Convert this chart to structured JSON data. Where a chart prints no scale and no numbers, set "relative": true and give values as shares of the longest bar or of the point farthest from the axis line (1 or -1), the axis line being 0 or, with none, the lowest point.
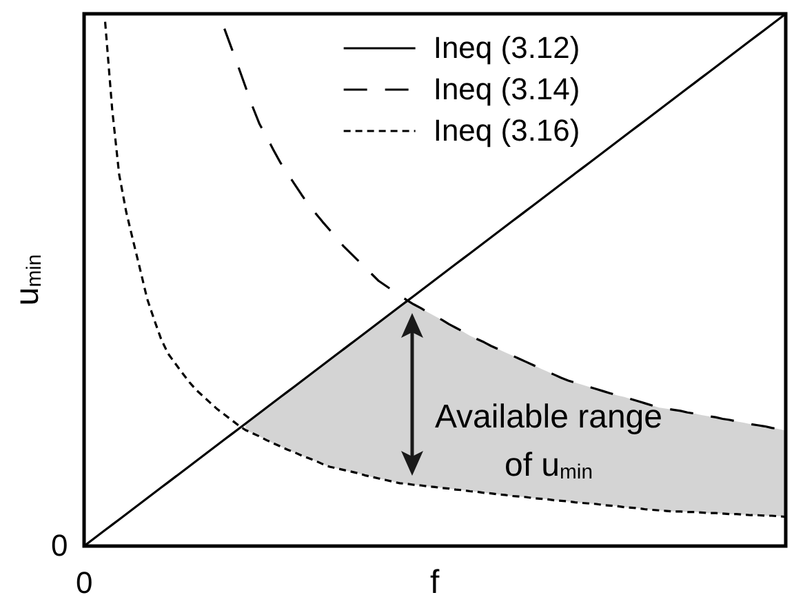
{
  "chart_data": {
    "type": "line",
    "relative": true,
    "xlabel": "f",
    "ylabel": "u$_{min}$",
    "legend": "top",
    "annotations": [
      "Available range of u$_{min}$",
      "0",
      "0"
    ],
    "categories": [
      null,
      null,
      null,
      null,
      null,
      null,
      null,
      null,
      null,
      null,
      null,
      null,
      null,
      null,
      null,
      null,
      null,
      null,
      null,
      null,
      null,
      null,
      null,
      null,
      null,
      null,
      null,
      null,
      null,
      null,
      null,
      null,
      null,
      null,
      null,
      null,
      null,
      null,
      null,
      null,
      null,
      null,
      null,
      null,
      null,
      null,
      null,
      null,
      null,
      null,
      null,
      null,
      null,
      null,
      null,
      null,
      null,
      null,
      null,
      null,
      null,
      null,
      null,
      null,
      null,
      null,
      null,
      null,
      null,
      null,
      null,
      null,
      null,
      null,
      null,
      null,
      null,
      null,
      null,
      null,
      null,
      null,
      null,
      null,
      null,
      null,
      null,
      null,
      null,
      null,
      null,
      null,
      null,
      null,
      null,
      null,
      null,
      null,
      null,
      null,
      null
    ],
    "series": [
      {
        "name": "Ineq (3.12)",
        "color": "#000000",
        "line_style": "solid",
        "values": [
          0,
          0.01,
          0.02,
          0.03,
          0.04,
          0.05,
          0.06,
          0.07,
          0.08,
          0.09,
          0.1,
          0.11,
          0.12,
          0.13,
          0.14,
          0.15,
          0.16,
          0.17,
          0.18,
          0.19,
          0.2,
          0.21,
          0.22,
          0.23,
          0.24,
          0.25,
          0.26,
          0.27,
          0.28,
          0.29,
          0.3,
          0.31,
          0.32,
          0.33,
          0.34,
          0.35,
          0.36,
          0.37,
          0.38,
          0.39,
          0.4,
          0.41,
          0.42,
          0.43,
          0.44,
          0.45,
          0.46,
          0.47,
          0.48,
          0.49,
          0.5,
          0.51,
          0.52,
          0.53,
          0.54,
          0.55,
          0.56,
          0.57,
          0.58,
          0.59,
          0.6,
          0.61,
          0.62,
          0.63,
          0.64,
          0.65,
          0.66,
          0.67,
          0.68,
          0.69,
          0.7,
          0.71,
          0.72,
          0.73,
          0.74,
          0.75,
          0.76,
          0.77,
          0.78,
          0.79,
          0.8,
          0.81,
          0.82,
          0.83,
          0.84,
          0.85,
          0.86,
          0.87,
          0.88,
          0.89,
          0.9,
          0.91,
          0.92,
          0.93,
          0.94,
          0.95,
          0.96,
          0.97,
          0.98,
          0.99,
          1
        ]
      },
      {
        "name": "Ineq (3.14)",
        "color": "#000000",
        "line_style": "dashed",
        "values": [
          null,
          null,
          null,
          null,
          null,
          null,
          null,
          null,
          null,
          null,
          null,
          null,
          null,
          null,
          null,
          null,
          null,
          null,
          null,
          null,
          0.972,
          0.936,
          0.9,
          0.863,
          0.826,
          0.793,
          0.769,
          0.744,
          0.72,
          0.7,
          0.68,
          0.66,
          0.641,
          0.625,
          0.609,
          0.594,
          0.578,
          0.563,
          0.55,
          0.537,
          0.524,
          0.511,
          0.498,
          0.489,
          0.48,
          0.471,
          0.462,
          0.454,
          0.447,
          0.439,
          0.432,
          0.425,
          0.417,
          0.41,
          0.403,
          0.395,
          0.389,
          0.383,
          0.376,
          0.37,
          0.364,
          0.358,
          0.352,
          0.346,
          0.34,
          0.334,
          0.328,
          0.322,
          0.316,
          0.311,
          0.307,
          0.303,
          0.299,
          0.295,
          0.291,
          0.287,
          0.283,
          0.28,
          0.276,
          0.272,
          0.268,
          0.264,
          0.26,
          0.258,
          0.256,
          0.254,
          0.251,
          0.249,
          0.246,
          0.244,
          0.242,
          0.239,
          0.237,
          0.234,
          0.232,
          0.229,
          0.227,
          0.225,
          0.222,
          0.22,
          0.217
        ]
      },
      {
        "name": "Ineq (3.16)",
        "color": "#000000",
        "line_style": "dotted",
        "values": [
          null,
          null,
          null,
          0.985,
          0.821,
          0.698,
          0.628,
          0.573,
          0.519,
          0.464,
          0.425,
          0.388,
          0.361,
          0.343,
          0.325,
          0.308,
          0.293,
          0.281,
          0.269,
          0.257,
          0.247,
          0.237,
          0.227,
          0.218,
          0.212,
          0.206,
          0.199,
          0.193,
          0.187,
          0.181,
          0.176,
          0.17,
          0.165,
          0.16,
          0.154,
          0.149,
          0.146,
          0.143,
          0.14,
          0.137,
          0.133,
          0.13,
          0.127,
          0.124,
          0.121,
          0.118,
          0.117,
          0.115,
          0.114,
          0.112,
          0.111,
          0.109,
          0.108,
          0.106,
          0.105,
          0.103,
          0.102,
          0.1,
          0.099,
          0.097,
          0.096,
          0.094,
          0.093,
          0.092,
          0.09,
          0.089,
          0.088,
          0.086,
          0.085,
          0.084,
          0.082,
          0.081,
          0.08,
          0.079,
          0.077,
          0.076,
          0.075,
          0.073,
          0.072,
          0.071,
          0.069,
          0.068,
          0.067,
          0.066,
          0.065,
          0.065,
          0.064,
          0.064,
          0.063,
          0.062,
          0.062,
          0.061,
          0.06,
          0.06,
          0.059,
          0.058,
          0.058,
          0.057,
          0.057,
          0.056,
          0.055
        ],
        "lower": [
          null,
          null,
          null,
          null,
          null,
          null,
          null,
          null,
          null,
          null,
          null,
          null,
          null,
          null,
          null,
          null,
          null,
          null,
          null,
          null,
          null,
          null,
          null,
          0.218,
          0.212,
          0.206,
          0.199,
          0.193,
          0.187,
          0.181,
          0.176,
          0.17,
          0.165,
          0.16,
          0.154,
          0.149,
          0.146,
          0.143,
          0.14,
          0.137,
          0.133,
          0.13,
          0.127,
          0.124,
          0.121,
          0.118,
          0.117,
          0.115,
          0.114,
          0.112,
          0.111,
          0.109,
          0.108,
          0.106,
          0.105,
          0.103,
          0.102,
          0.1,
          0.099,
          0.097,
          0.096,
          0.094,
          0.093,
          0.092,
          0.09,
          0.089,
          0.088,
          0.086,
          0.085,
          0.084,
          0.082,
          0.081,
          0.08,
          0.079,
          0.077,
          0.076,
          0.075,
          0.073,
          0.072,
          0.071,
          0.069,
          0.068,
          0.067,
          0.066,
          0.065,
          0.065,
          0.064,
          0.064,
          0.063,
          0.062,
          0.062,
          0.061,
          0.06,
          0.06,
          0.059,
          0.058,
          0.058,
          0.057,
          0.057,
          0.056,
          0.055
        ],
        "upper": [
          null,
          null,
          null,
          null,
          null,
          null,
          null,
          null,
          null,
          null,
          null,
          null,
          null,
          null,
          null,
          null,
          null,
          null,
          null,
          null,
          null,
          null,
          null,
          0.23,
          0.24,
          0.25,
          0.26,
          0.27,
          0.28,
          0.29,
          0.3,
          0.31,
          0.32,
          0.33,
          0.34,
          0.35,
          0.36,
          0.37,
          0.38,
          0.39,
          0.4,
          0.41,
          0.42,
          0.43,
          0.44,
          0.45,
          0.46,
          0.454,
          0.447,
          0.439,
          0.432,
          0.425,
          0.417,
          0.41,
          0.403,
          0.395,
          0.389,
          0.383,
          0.376,
          0.37,
          0.364,
          0.358,
          0.352,
          0.346,
          0.34,
          0.334,
          0.328,
          0.322,
          0.316,
          0.311,
          0.307,
          0.303,
          0.299,
          0.295,
          0.291,
          0.287,
          0.283,
          0.28,
          0.276,
          0.272,
          0.268,
          0.264,
          0.26,
          0.258,
          0.256,
          0.254,
          0.251,
          0.249,
          0.246,
          0.244,
          0.242,
          0.239,
          0.237,
          0.234,
          0.232,
          0.229,
          0.227,
          0.225,
          0.222,
          0.22,
          0.217
        ]
      }
    ]
  }
}
